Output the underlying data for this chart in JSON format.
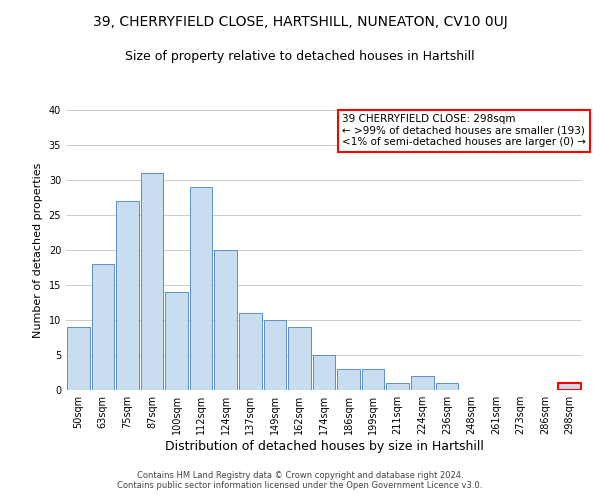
{
  "title": "39, CHERRYFIELD CLOSE, HARTSHILL, NUNEATON, CV10 0UJ",
  "subtitle": "Size of property relative to detached houses in Hartshill",
  "xlabel": "Distribution of detached houses by size in Hartshill",
  "ylabel": "Number of detached properties",
  "categories": [
    "50sqm",
    "63sqm",
    "75sqm",
    "87sqm",
    "100sqm",
    "112sqm",
    "124sqm",
    "137sqm",
    "149sqm",
    "162sqm",
    "174sqm",
    "186sqm",
    "199sqm",
    "211sqm",
    "224sqm",
    "236sqm",
    "248sqm",
    "261sqm",
    "273sqm",
    "286sqm",
    "298sqm"
  ],
  "values": [
    9,
    18,
    27,
    31,
    14,
    29,
    20,
    11,
    10,
    9,
    5,
    3,
    3,
    1,
    2,
    1,
    0,
    0,
    0,
    0,
    1
  ],
  "bar_color": "#c9ddf0",
  "bar_edge_color": "#5b8fc9",
  "highlight_bar_index": 20,
  "highlight_edge_color": "#ff0000",
  "ylim": [
    0,
    40
  ],
  "yticks": [
    0,
    5,
    10,
    15,
    20,
    25,
    30,
    35,
    40
  ],
  "annotation_line1": "39 CHERRYFIELD CLOSE: 298sqm",
  "annotation_line2": "← >99% of detached houses are smaller (193)",
  "annotation_line3": "<1% of semi-detached houses are larger (0) →",
  "annotation_box_edge_color": "#ff0000",
  "footer_text": "Contains HM Land Registry data © Crown copyright and database right 2024.\nContains public sector information licensed under the Open Government Licence v3.0.",
  "grid_color": "#cccccc",
  "bg_color": "#ffffff",
  "title_fontsize": 10,
  "subtitle_fontsize": 9,
  "tick_fontsize": 7,
  "ylabel_fontsize": 8,
  "xlabel_fontsize": 9,
  "annotation_fontsize": 7.5,
  "footer_fontsize": 6
}
